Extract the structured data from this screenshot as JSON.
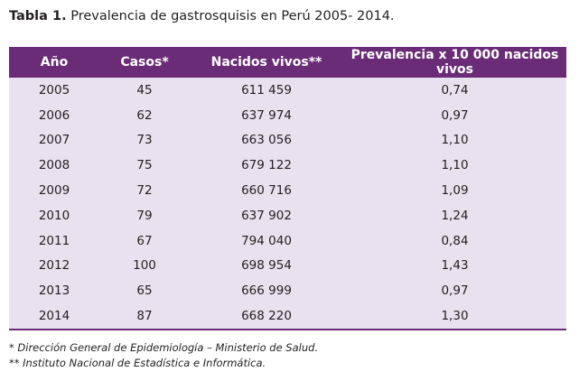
{
  "caption": {
    "lead": "Tabla 1.",
    "text": " Prevalencia de gastrosquisis en Perú 2005- 2014."
  },
  "table": {
    "headers": [
      "Año",
      "Casos*",
      "Nacidos vivos**",
      "Prevalencia x 10 000 nacidos vivos"
    ],
    "rows": [
      [
        "2005",
        "45",
        "611 459",
        "0,74"
      ],
      [
        "2006",
        "62",
        "637 974",
        "0,97"
      ],
      [
        "2007",
        "73",
        "663 056",
        "1,10"
      ],
      [
        "2008",
        "75",
        "679 122",
        "1,10"
      ],
      [
        "2009",
        "72",
        "660 716",
        "1,09"
      ],
      [
        "2010",
        "79",
        "637 902",
        "1,24"
      ],
      [
        "2011",
        "67",
        "794 040",
        "0,84"
      ],
      [
        "2012",
        "100",
        "698 954",
        "1,43"
      ],
      [
        "2013",
        "65",
        "666 999",
        "0,97"
      ],
      [
        "2014",
        "87",
        "668 220",
        "1,30"
      ]
    ]
  },
  "notes": [
    "* Dirección General de Epidemiología – Ministerio de Salud.",
    "** Instituto Nacional de Estadística e Informática."
  ],
  "colors": {
    "header_bg": "#6a2b77",
    "body_bg": "#e9e1ef"
  }
}
